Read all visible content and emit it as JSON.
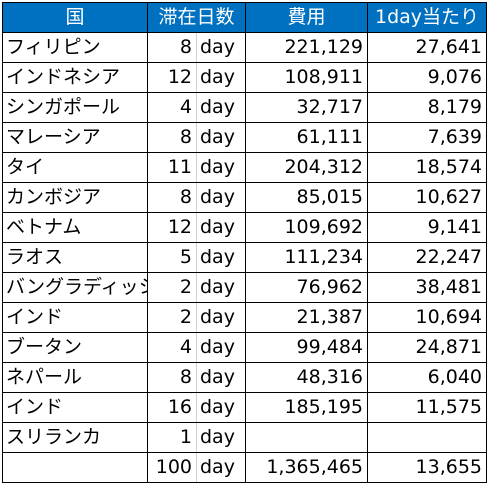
{
  "headers": {
    "country": "国",
    "days": "滞在日数",
    "cost": "費用",
    "per_day": "1day当たり"
  },
  "rows": [
    {
      "country": "フィリピン",
      "days": "8",
      "unit": "day",
      "cost": "221,129",
      "per_day": "27,641"
    },
    {
      "country": "インドネシア",
      "days": "12",
      "unit": "day",
      "cost": "108,911",
      "per_day": "9,076"
    },
    {
      "country": "シンガポール",
      "days": "4",
      "unit": "day",
      "cost": "32,717",
      "per_day": "8,179"
    },
    {
      "country": "マレーシア",
      "days": "8",
      "unit": "day",
      "cost": "61,111",
      "per_day": "7,639"
    },
    {
      "country": "タイ",
      "days": "11",
      "unit": "day",
      "cost": "204,312",
      "per_day": "18,574"
    },
    {
      "country": "カンボジア",
      "days": "8",
      "unit": "day",
      "cost": "85,015",
      "per_day": "10,627"
    },
    {
      "country": "ベトナム",
      "days": "12",
      "unit": "day",
      "cost": "109,692",
      "per_day": "9,141"
    },
    {
      "country": "ラオス",
      "days": "5",
      "unit": "day",
      "cost": "111,234",
      "per_day": "22,247"
    },
    {
      "country": "バングラディッシュ",
      "days": "2",
      "unit": "day",
      "cost": "76,962",
      "per_day": "38,481"
    },
    {
      "country": "インド",
      "days": "2",
      "unit": "day",
      "cost": "21,387",
      "per_day": "10,694"
    },
    {
      "country": "ブータン",
      "days": "4",
      "unit": "day",
      "cost": "99,484",
      "per_day": "24,871"
    },
    {
      "country": "ネパール",
      "days": "8",
      "unit": "day",
      "cost": "48,316",
      "per_day": "6,040"
    },
    {
      "country": "インド",
      "days": "16",
      "unit": "day",
      "cost": "185,195",
      "per_day": "11,575"
    },
    {
      "country": "スリランカ",
      "days": "1",
      "unit": "day",
      "cost": "",
      "per_day": ""
    }
  ],
  "total": {
    "country": "",
    "days": "100",
    "unit": "day",
    "cost": "1,365,465",
    "per_day": "13,655"
  }
}
